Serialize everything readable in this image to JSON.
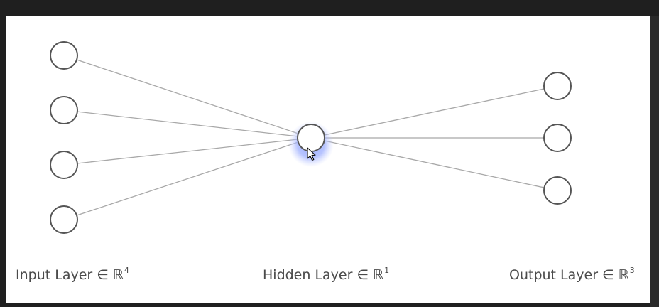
{
  "diagram": {
    "layers": [
      {
        "name": "input",
        "size": 4,
        "label": "Input Layer ∈ ℝ",
        "dim": "4"
      },
      {
        "name": "hidden",
        "size": 1,
        "label": "Hidden Layer ∈ ℝ",
        "dim": "1"
      },
      {
        "name": "output",
        "size": 3,
        "label": "Output Layer ∈ ℝ",
        "dim": "3"
      }
    ],
    "highlighted_node": "hidden-0",
    "highlight_color": "#8fa2ff",
    "edge_color": "#a8a8a8",
    "node_stroke_color": "#555555"
  }
}
